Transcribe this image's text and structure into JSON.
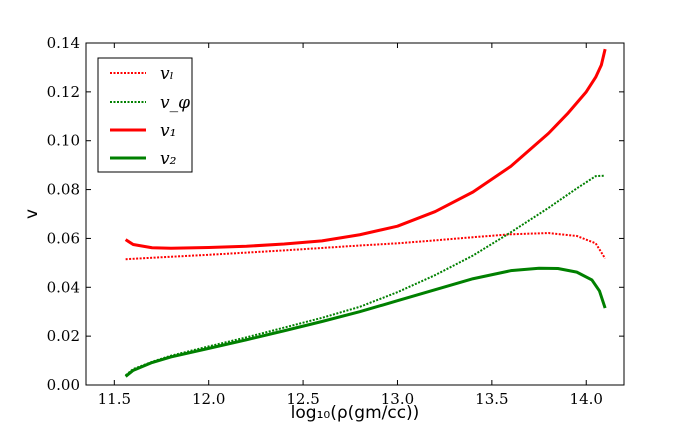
{
  "chart_data": {
    "type": "line",
    "title": "",
    "xlabel": "log₁₀(ρ(gm/cc))",
    "ylabel": "v",
    "xlim": [
      11.35,
      14.2
    ],
    "ylim": [
      0.0,
      0.14
    ],
    "xticks": [
      11.5,
      12.0,
      12.5,
      13.0,
      13.5,
      14.0
    ],
    "xtick_labels": [
      "11.5",
      "12.0",
      "12.5",
      "13.0",
      "13.5",
      "14.0"
    ],
    "yticks": [
      0.0,
      0.02,
      0.04,
      0.06,
      0.08,
      0.1,
      0.12,
      0.14
    ],
    "ytick_labels": [
      "0.00",
      "0.02",
      "0.04",
      "0.06",
      "0.08",
      "0.10",
      "0.12",
      "0.14"
    ],
    "grid": false,
    "legend_position": "top-left",
    "series": [
      {
        "name": "vₗ",
        "color": "#ff0000",
        "style": "dotted",
        "x": [
          11.56,
          11.8,
          12.0,
          12.2,
          12.4,
          12.6,
          12.8,
          13.0,
          13.2,
          13.4,
          13.6,
          13.8,
          13.95,
          14.05,
          14.1
        ],
        "y": [
          0.0515,
          0.0525,
          0.0533,
          0.0542,
          0.0551,
          0.0561,
          0.0571,
          0.058,
          0.0592,
          0.0605,
          0.0617,
          0.0622,
          0.061,
          0.058,
          0.0518
        ]
      },
      {
        "name": "v_φ",
        "color": "#008000",
        "style": "dotted",
        "x": [
          11.56,
          11.6,
          11.7,
          11.8,
          12.0,
          12.2,
          12.4,
          12.6,
          12.8,
          13.0,
          13.2,
          13.4,
          13.6,
          13.8,
          13.95,
          14.05,
          14.1
        ],
        "y": [
          0.004,
          0.0065,
          0.0095,
          0.012,
          0.0158,
          0.0195,
          0.0235,
          0.0275,
          0.032,
          0.038,
          0.045,
          0.053,
          0.0625,
          0.0725,
          0.0805,
          0.0855,
          0.0857
        ]
      },
      {
        "name": "v₁",
        "color": "#ff0000",
        "style": "solid",
        "x": [
          11.56,
          11.6,
          11.7,
          11.8,
          12.0,
          12.2,
          12.4,
          12.6,
          12.8,
          13.0,
          13.2,
          13.4,
          13.6,
          13.8,
          13.9,
          14.0,
          14.05,
          14.08,
          14.1
        ],
        "y": [
          0.0595,
          0.0575,
          0.0562,
          0.056,
          0.0563,
          0.0568,
          0.0577,
          0.059,
          0.0615,
          0.065,
          0.071,
          0.079,
          0.0895,
          0.103,
          0.111,
          0.12,
          0.126,
          0.131,
          0.1375
        ]
      },
      {
        "name": "v₂",
        "color": "#008000",
        "style": "solid",
        "x": [
          11.56,
          11.6,
          11.7,
          11.8,
          12.0,
          12.2,
          12.4,
          12.6,
          12.8,
          13.0,
          13.2,
          13.4,
          13.6,
          13.75,
          13.85,
          13.95,
          14.03,
          14.07,
          14.1
        ],
        "y": [
          0.0035,
          0.006,
          0.0092,
          0.0115,
          0.015,
          0.0185,
          0.0222,
          0.026,
          0.03,
          0.0345,
          0.039,
          0.0435,
          0.0468,
          0.0478,
          0.0477,
          0.0462,
          0.043,
          0.0385,
          0.0315
        ]
      }
    ]
  }
}
